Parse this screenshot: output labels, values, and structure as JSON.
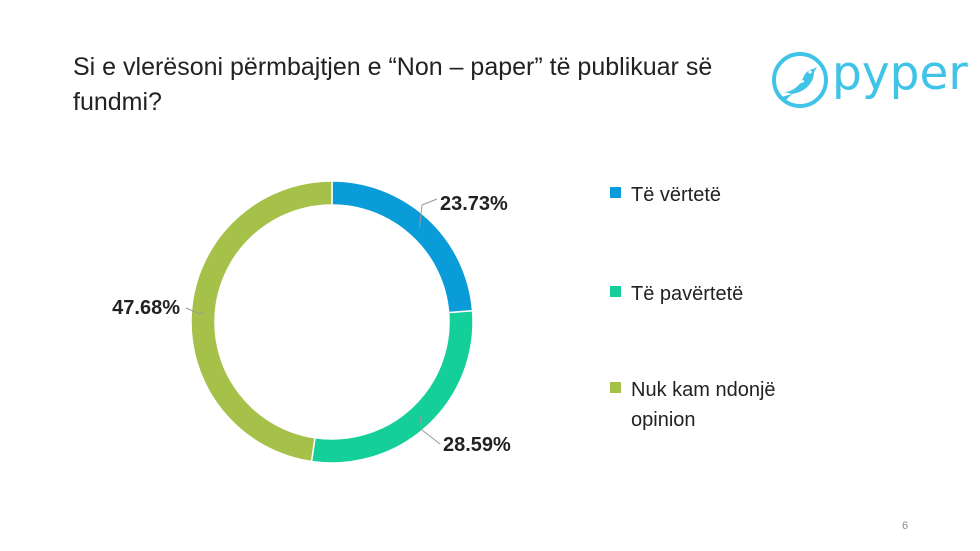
{
  "title": "Si e vlerësoni përmbajtjen e “Non – paper” të publikuar së fundmi?",
  "logo": {
    "text": "pyper",
    "icon": "bird-icon",
    "color": "#3fc3e6"
  },
  "chart_data": {
    "type": "pie",
    "variant": "donut",
    "title": "",
    "categories": [
      "Të vërtetë",
      "Të pavërtetë",
      "Nuk kam ndonjë opinion"
    ],
    "values": [
      23.73,
      28.59,
      47.68
    ],
    "value_labels": [
      "23.73%",
      "28.59%",
      "47.68%"
    ],
    "colors": [
      "#0a9cd8",
      "#14cf9a",
      "#a5c14a"
    ],
    "start_angle_deg": 0,
    "direction": "clockwise",
    "legend_position": "right"
  },
  "page_number": "6"
}
